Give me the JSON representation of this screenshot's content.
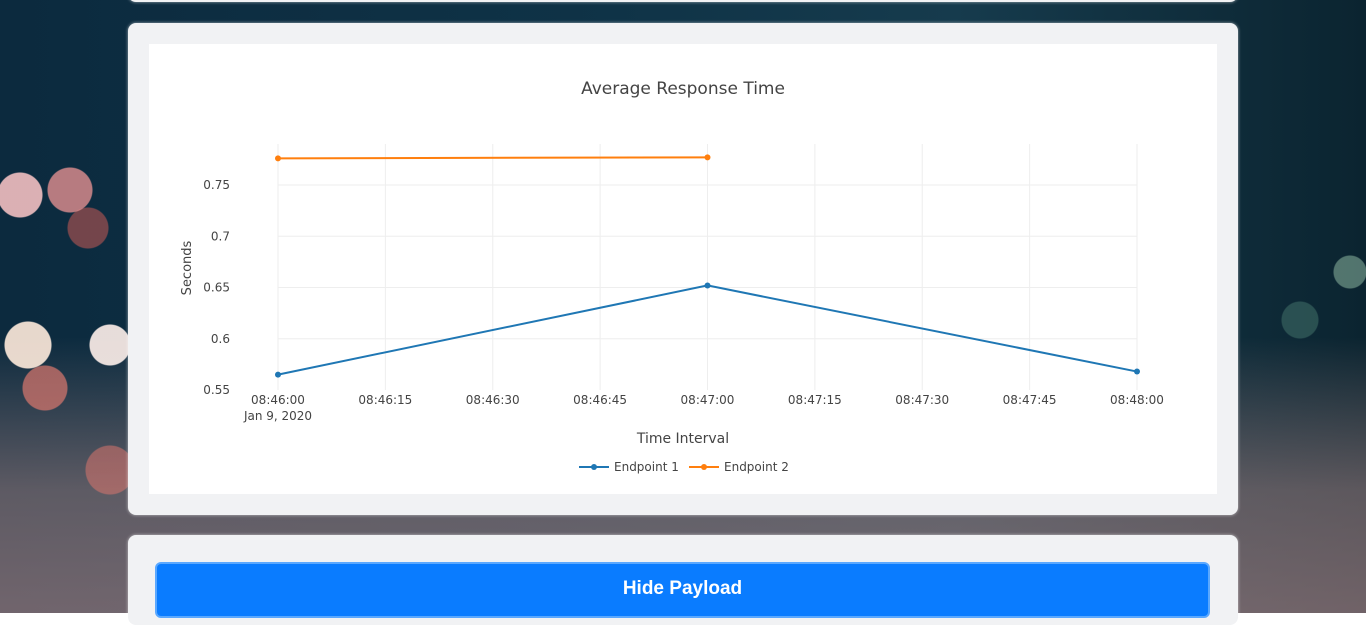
{
  "payload": {
    "hide_button_label": "Hide Payload"
  },
  "chart_data": {
    "type": "line",
    "title": "Average Response Time",
    "xlabel": "Time Interval",
    "ylabel": "Seconds",
    "date_label": "Jan 9, 2020",
    "x_ticks": [
      "08:46:00",
      "08:46:15",
      "08:46:30",
      "08:46:45",
      "08:47:00",
      "08:47:15",
      "08:47:30",
      "08:47:45",
      "08:48:00"
    ],
    "y_ticks": [
      "0.55",
      "0.6",
      "0.65",
      "0.7",
      "0.75"
    ],
    "xlim": [
      "08:46:00",
      "08:48:00"
    ],
    "ylim": [
      0.55,
      0.79
    ],
    "grid": true,
    "legend_position": "bottom-center",
    "series": [
      {
        "name": "Endpoint 1",
        "color": "#1f77b4",
        "x": [
          "08:46:00",
          "08:47:00",
          "08:48:00"
        ],
        "y": [
          0.565,
          0.652,
          0.568
        ]
      },
      {
        "name": "Endpoint 2",
        "color": "#ff7f0e",
        "x": [
          "08:46:00",
          "08:47:00"
        ],
        "y": [
          0.776,
          0.777
        ]
      }
    ]
  }
}
